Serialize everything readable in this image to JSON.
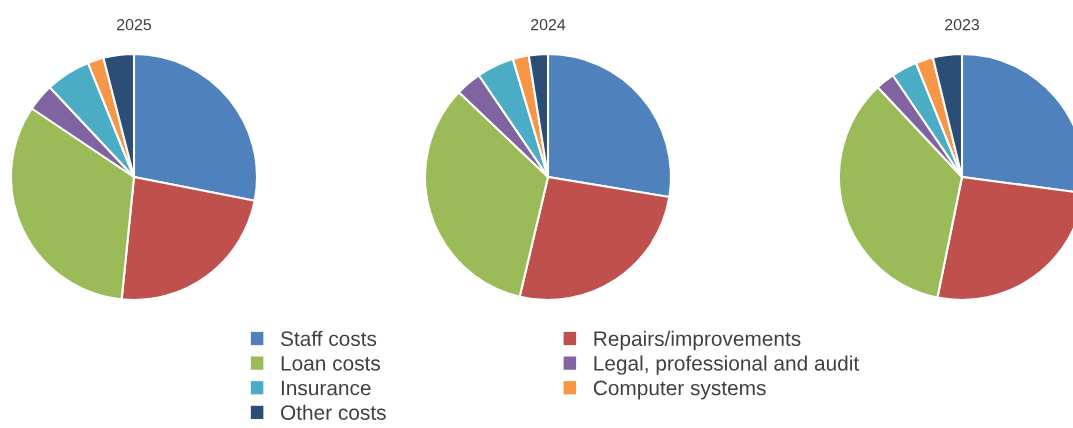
{
  "chart_data": [
    {
      "type": "pie",
      "title": "2025",
      "categories": [
        "Staff costs",
        "Repairs/improvements",
        "Loan costs",
        "Legal, professional and audit",
        "Insurance",
        "Computer systems",
        "Other costs"
      ],
      "values": [
        28.1,
        23.5,
        32.8,
        3.6,
        5.9,
        2.1,
        4.0
      ],
      "colors": [
        "#4f81bd",
        "#c0504d",
        "#9bbb59",
        "#8064a2",
        "#4bacc6",
        "#f79646",
        "#2c4d75"
      ],
      "legend": "bottom"
    },
    {
      "type": "pie",
      "title": "2024",
      "values": [
        27.6,
        26.1,
        33.4,
        3.4,
        4.9,
        2.1,
        2.5
      ],
      "colors": [
        "#4f81bd",
        "#c0504d",
        "#9bbb59",
        "#8064a2",
        "#4bacc6",
        "#f79646",
        "#2c4d75"
      ]
    },
    {
      "type": "pie",
      "title": "2023",
      "values": [
        27.1,
        26.1,
        34.8,
        2.5,
        3.4,
        2.3,
        3.8
      ],
      "colors": [
        "#4f81bd",
        "#c0504d",
        "#9bbb59",
        "#8064a2",
        "#4bacc6",
        "#f79646",
        "#2c4d75"
      ]
    }
  ]
}
